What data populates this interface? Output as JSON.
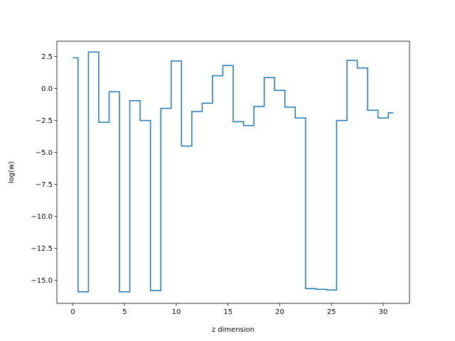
{
  "chart_data": {
    "type": "line",
    "drawstyle": "steps-mid",
    "title": "",
    "xlabel": "z dimension",
    "ylabel": "log(w)",
    "xlim": [
      -1.55,
      32.55
    ],
    "ylim": [
      -16.8,
      3.7
    ],
    "grid": false,
    "color": "#1f77b4",
    "x_ticks": [
      0,
      5,
      10,
      15,
      20,
      25,
      30
    ],
    "x_tick_labels": [
      "0",
      "5",
      "10",
      "15",
      "20",
      "25",
      "30"
    ],
    "y_ticks": [
      2.5,
      0.0,
      -2.5,
      -5.0,
      -7.5,
      -10.0,
      -12.5,
      -15.0
    ],
    "y_tick_labels": [
      "2.5",
      "0.0",
      "−2.5",
      "−5.0",
      "−7.5",
      "−10.0",
      "−12.5",
      "−15.0"
    ],
    "series": [
      {
        "x": [
          0,
          1,
          2,
          3,
          4,
          5,
          6,
          7,
          8,
          9,
          10,
          11,
          12,
          13,
          14,
          15,
          16,
          17,
          18,
          19,
          20,
          21,
          22,
          23,
          24,
          25,
          26,
          27,
          28,
          29,
          30,
          31
        ],
        "values": [
          2.4,
          -15.9,
          2.85,
          -2.65,
          -0.25,
          -15.9,
          -0.95,
          -2.5,
          -15.8,
          -1.55,
          2.15,
          -4.5,
          -1.8,
          -1.15,
          1.0,
          1.8,
          -2.6,
          -2.9,
          -1.4,
          0.85,
          -0.15,
          -1.45,
          -2.3,
          -15.65,
          -15.7,
          -15.75,
          -2.5,
          2.2,
          1.6,
          -1.7,
          -2.3,
          -1.9
        ]
      }
    ]
  }
}
